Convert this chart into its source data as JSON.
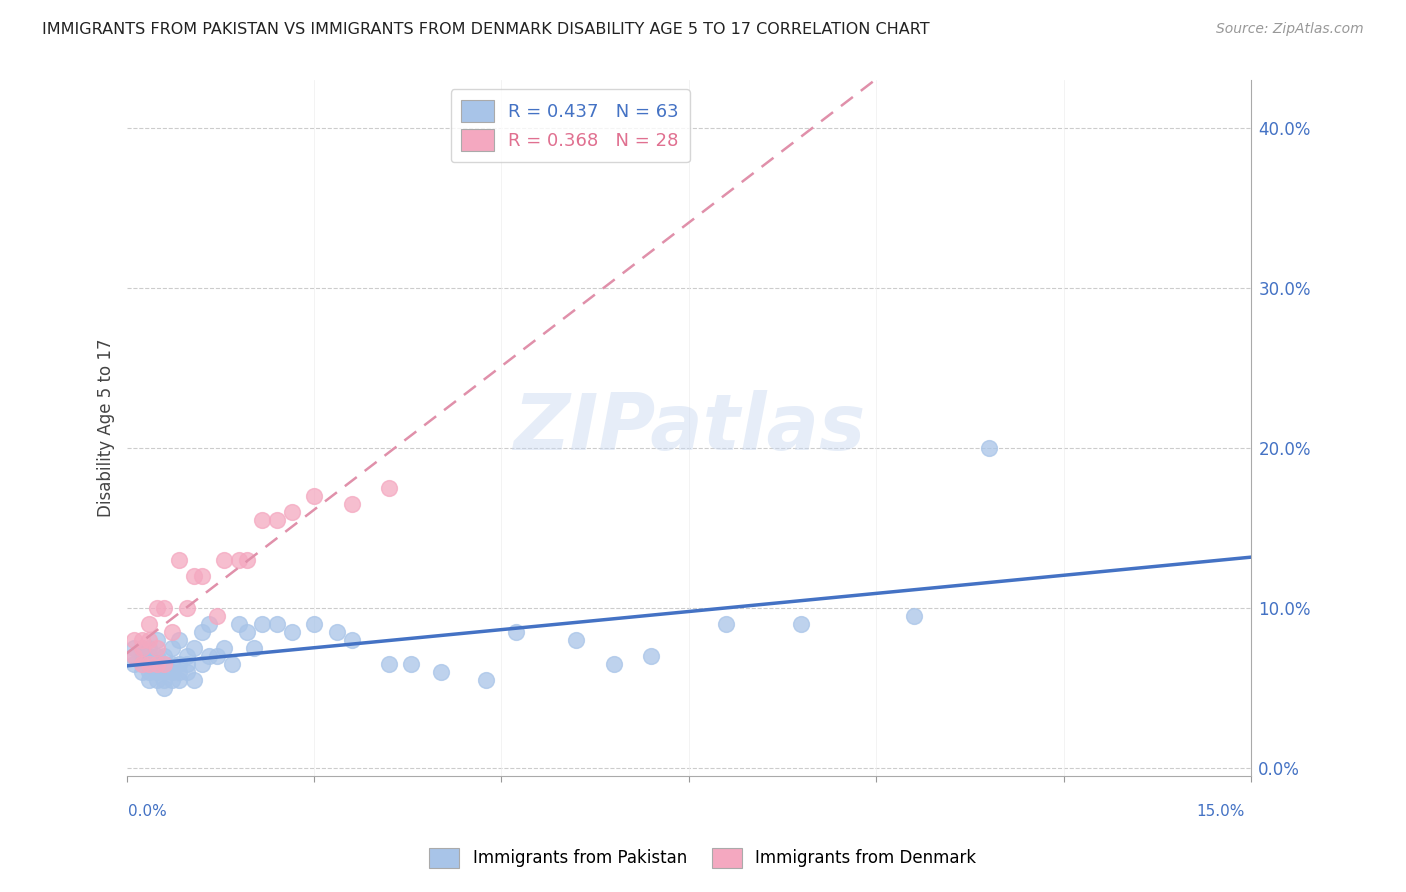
{
  "title": "IMMIGRANTS FROM PAKISTAN VS IMMIGRANTS FROM DENMARK DISABILITY AGE 5 TO 17 CORRELATION CHART",
  "source": "Source: ZipAtlas.com",
  "ylabel": "Disability Age 5 to 17",
  "ylabel_right_ticks": [
    "0.0%",
    "10.0%",
    "20.0%",
    "30.0%",
    "40.0%"
  ],
  "ylabel_right_vals": [
    0.0,
    0.1,
    0.2,
    0.3,
    0.4
  ],
  "xlim": [
    0.0,
    0.15
  ],
  "ylim": [
    -0.005,
    0.43
  ],
  "color_pakistan": "#a8c4e8",
  "color_denmark": "#f4a8c0",
  "color_pakistan_line": "#4472c4",
  "color_denmark_line": "#f4a8c0",
  "watermark": "ZIPatlas",
  "pakistan_x": [
    0.001,
    0.001,
    0.001,
    0.002,
    0.002,
    0.002,
    0.002,
    0.003,
    0.003,
    0.003,
    0.003,
    0.003,
    0.004,
    0.004,
    0.004,
    0.004,
    0.004,
    0.005,
    0.005,
    0.005,
    0.005,
    0.005,
    0.006,
    0.006,
    0.006,
    0.006,
    0.007,
    0.007,
    0.007,
    0.007,
    0.008,
    0.008,
    0.008,
    0.009,
    0.009,
    0.01,
    0.01,
    0.011,
    0.011,
    0.012,
    0.013,
    0.014,
    0.015,
    0.016,
    0.017,
    0.018,
    0.02,
    0.022,
    0.025,
    0.028,
    0.03,
    0.035,
    0.038,
    0.042,
    0.048,
    0.052,
    0.06,
    0.065,
    0.07,
    0.08,
    0.09,
    0.105,
    0.115
  ],
  "pakistan_y": [
    0.065,
    0.07,
    0.075,
    0.06,
    0.065,
    0.07,
    0.075,
    0.055,
    0.06,
    0.065,
    0.07,
    0.075,
    0.055,
    0.06,
    0.065,
    0.07,
    0.08,
    0.05,
    0.055,
    0.06,
    0.065,
    0.07,
    0.055,
    0.06,
    0.065,
    0.075,
    0.055,
    0.06,
    0.065,
    0.08,
    0.06,
    0.065,
    0.07,
    0.055,
    0.075,
    0.065,
    0.085,
    0.07,
    0.09,
    0.07,
    0.075,
    0.065,
    0.09,
    0.085,
    0.075,
    0.09,
    0.09,
    0.085,
    0.09,
    0.085,
    0.08,
    0.065,
    0.065,
    0.06,
    0.055,
    0.085,
    0.08,
    0.065,
    0.07,
    0.09,
    0.09,
    0.095,
    0.2
  ],
  "denmark_x": [
    0.001,
    0.001,
    0.002,
    0.002,
    0.002,
    0.003,
    0.003,
    0.003,
    0.004,
    0.004,
    0.004,
    0.005,
    0.005,
    0.006,
    0.007,
    0.008,
    0.009,
    0.01,
    0.012,
    0.013,
    0.015,
    0.016,
    0.018,
    0.02,
    0.022,
    0.025,
    0.03,
    0.035
  ],
  "denmark_y": [
    0.07,
    0.08,
    0.065,
    0.075,
    0.08,
    0.065,
    0.09,
    0.08,
    0.075,
    0.065,
    0.1,
    0.065,
    0.1,
    0.085,
    0.13,
    0.1,
    0.12,
    0.12,
    0.095,
    0.13,
    0.13,
    0.13,
    0.155,
    0.155,
    0.16,
    0.17,
    0.165,
    0.175
  ]
}
